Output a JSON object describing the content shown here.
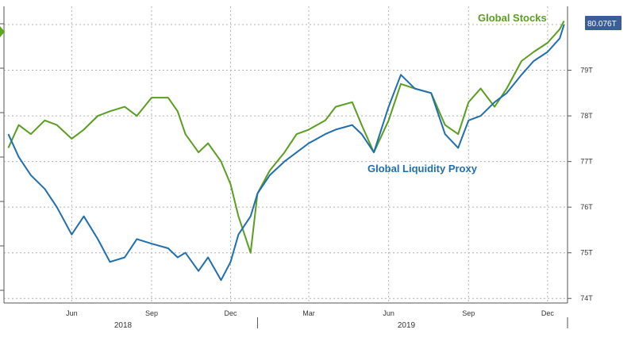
{
  "colors": {
    "stocks": "#5a9e1f",
    "liquidity": "#1f6fb0",
    "grid": "#b0b0b0",
    "axis": "#555555",
    "last_value_badge_bg": "#3a5e9a",
    "arrow": "#5aa81e"
  },
  "last_value_badge": "80.076T",
  "chart_data": {
    "type": "line",
    "title": "",
    "xlabel": "",
    "ylabel": "",
    "x_tick_labels": [
      "Jun",
      "Sep",
      "Dec",
      "Mar",
      "Jun",
      "Sep",
      "Dec"
    ],
    "x_year_labels": [
      "2018",
      "2019"
    ],
    "y_tick_labels": [
      "74T",
      "75T",
      "76T",
      "77T",
      "78T",
      "79T"
    ],
    "ylim": [
      73.9,
      80.4
    ],
    "grid": true,
    "legend": "inline annotations",
    "series": [
      {
        "name": "Global Stocks",
        "x": [
          "2018-03-20",
          "2018-04-01",
          "2018-04-15",
          "2018-05-01",
          "2018-05-15",
          "2018-06-01",
          "2018-06-15",
          "2018-07-01",
          "2018-07-15",
          "2018-08-01",
          "2018-08-15",
          "2018-09-01",
          "2018-09-20",
          "2018-10-01",
          "2018-10-10",
          "2018-10-25",
          "2018-11-05",
          "2018-11-20",
          "2018-12-01",
          "2018-12-10",
          "2018-12-24",
          "2019-01-01",
          "2019-01-15",
          "2019-02-01",
          "2019-02-15",
          "2019-03-01",
          "2019-03-20",
          "2019-04-01",
          "2019-04-20",
          "2019-05-01",
          "2019-05-15",
          "2019-06-01",
          "2019-06-15",
          "2019-07-01",
          "2019-07-20",
          "2019-08-05",
          "2019-08-20",
          "2019-09-01",
          "2019-09-15",
          "2019-10-01",
          "2019-10-15",
          "2019-11-01",
          "2019-11-15",
          "2019-12-01",
          "2019-12-15",
          "2019-12-20"
        ],
        "values": [
          77.3,
          77.8,
          77.6,
          77.9,
          77.8,
          77.5,
          77.7,
          78.0,
          78.1,
          78.2,
          78.0,
          78.4,
          78.4,
          78.1,
          77.6,
          77.2,
          77.4,
          77.0,
          76.5,
          75.8,
          75.0,
          76.3,
          76.8,
          77.2,
          77.6,
          77.7,
          77.9,
          78.2,
          78.3,
          77.8,
          77.2,
          77.9,
          78.7,
          78.6,
          78.5,
          77.8,
          77.6,
          78.3,
          78.6,
          78.2,
          78.6,
          79.2,
          79.4,
          79.6,
          79.9,
          80.08
        ]
      },
      {
        "name": "Global Liquidity Proxy",
        "x": [
          "2018-03-20",
          "2018-04-01",
          "2018-04-15",
          "2018-05-01",
          "2018-05-15",
          "2018-06-01",
          "2018-06-15",
          "2018-07-01",
          "2018-07-15",
          "2018-08-01",
          "2018-08-15",
          "2018-09-01",
          "2018-09-20",
          "2018-10-01",
          "2018-10-10",
          "2018-10-25",
          "2018-11-05",
          "2018-11-20",
          "2018-12-01",
          "2018-12-10",
          "2018-12-24",
          "2019-01-01",
          "2019-01-15",
          "2019-02-01",
          "2019-02-15",
          "2019-03-01",
          "2019-03-20",
          "2019-04-01",
          "2019-04-20",
          "2019-05-01",
          "2019-05-15",
          "2019-06-01",
          "2019-06-15",
          "2019-07-01",
          "2019-07-20",
          "2019-08-05",
          "2019-08-20",
          "2019-09-01",
          "2019-09-15",
          "2019-10-01",
          "2019-10-15",
          "2019-11-01",
          "2019-11-15",
          "2019-12-01",
          "2019-12-15",
          "2019-12-20"
        ],
        "values": [
          77.6,
          77.1,
          76.7,
          76.4,
          76.0,
          75.4,
          75.8,
          75.3,
          74.8,
          74.9,
          75.3,
          75.2,
          75.1,
          74.9,
          75.0,
          74.6,
          74.9,
          74.4,
          74.8,
          75.4,
          75.8,
          76.3,
          76.7,
          77.0,
          77.2,
          77.4,
          77.6,
          77.7,
          77.8,
          77.6,
          77.2,
          78.2,
          78.9,
          78.6,
          78.5,
          77.6,
          77.3,
          77.9,
          78.0,
          78.3,
          78.5,
          78.9,
          79.2,
          79.4,
          79.7,
          80.0
        ]
      }
    ]
  }
}
